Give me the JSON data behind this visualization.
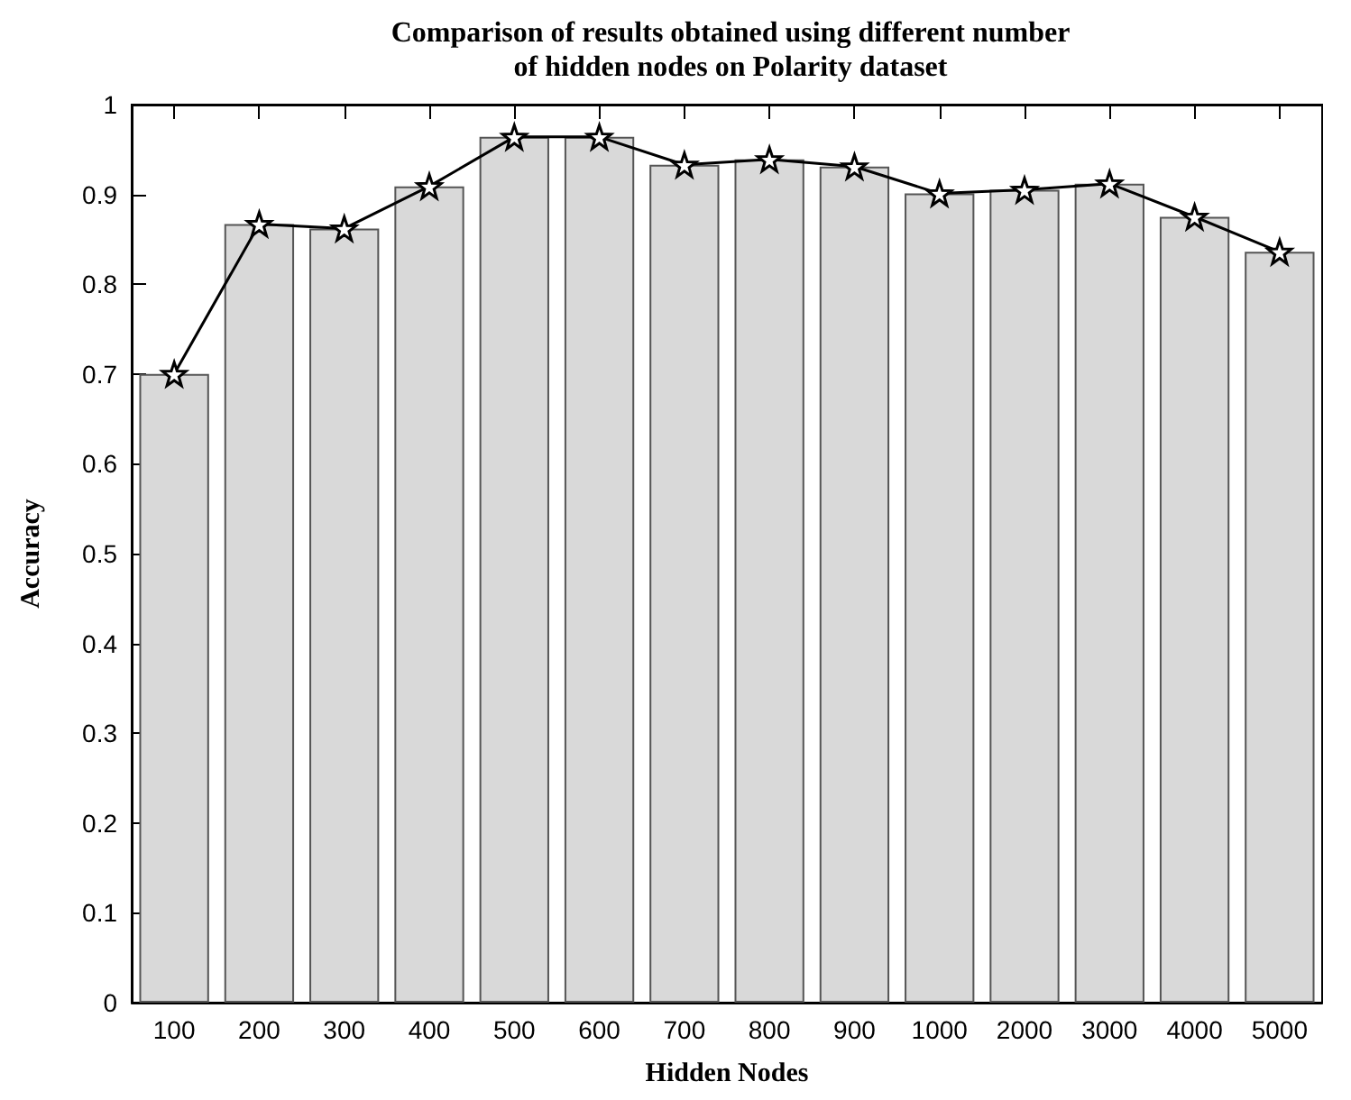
{
  "chart_data": {
    "type": "bar",
    "title": "Comparison of results obtained using different number\nof hidden nodes on Polarity dataset",
    "xlabel": "Hidden Nodes",
    "ylabel": "Accuracy",
    "categories": [
      "100",
      "200",
      "300",
      "400",
      "500",
      "600",
      "700",
      "800",
      "900",
      "1000",
      "2000",
      "3000",
      "4000",
      "5000"
    ],
    "series": [
      {
        "color": "#d9d9d9",
        "values": [
          0.7,
          0.867,
          0.862,
          0.909,
          0.964,
          0.964,
          0.933,
          0.939,
          0.931,
          0.901,
          0.905,
          0.912,
          0.875,
          0.836
        ]
      },
      {
        "type": "line",
        "color": "#000000",
        "marker": "star",
        "line_style": "solid",
        "values": [
          0.7,
          0.867,
          0.862,
          0.909,
          0.964,
          0.964,
          0.933,
          0.939,
          0.931,
          0.901,
          0.905,
          0.912,
          0.875,
          0.836
        ]
      }
    ],
    "ylim": [
      0,
      1
    ],
    "yticks": [
      0,
      0.1,
      0.2,
      0.3,
      0.4,
      0.5,
      0.6,
      0.7,
      0.8,
      0.9,
      1
    ],
    "grid": false
  }
}
